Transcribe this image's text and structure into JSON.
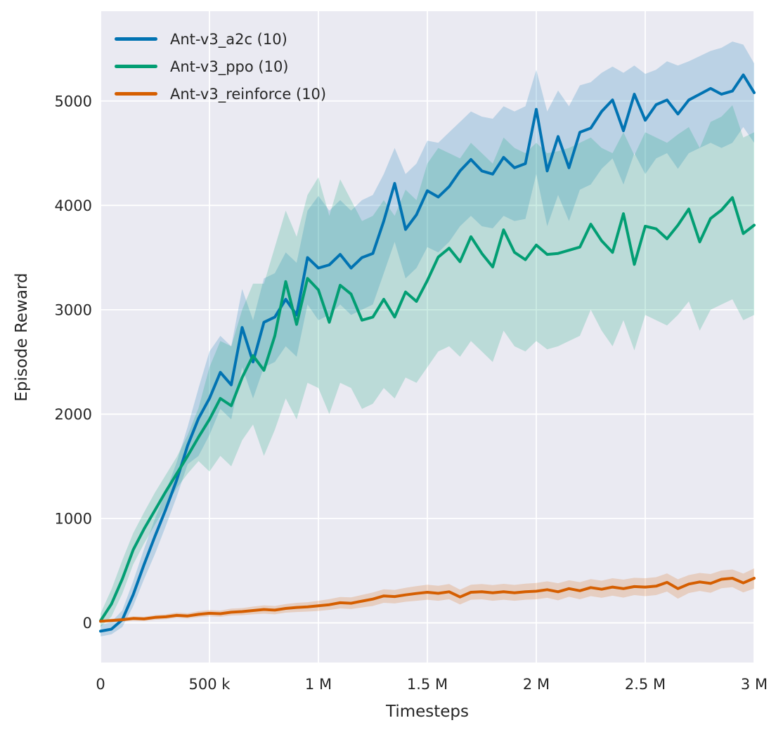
{
  "figure": {
    "background_color": "#ffffff",
    "axes_background_color": "#eaeaf2",
    "grid_color": "#ffffff",
    "text_color": "#262626"
  },
  "chart_data": {
    "type": "line",
    "title": "",
    "xlabel": "Timesteps",
    "ylabel": "Episode Reward",
    "xlim": [
      0,
      3000000
    ],
    "ylim": [
      -380,
      5860
    ],
    "grid": true,
    "legend_position": "upper left",
    "x_ticks": [
      {
        "value": 0,
        "label": "0"
      },
      {
        "value": 500000,
        "label": "500 k"
      },
      {
        "value": 1000000,
        "label": "1 M"
      },
      {
        "value": 1500000,
        "label": "1.5 M"
      },
      {
        "value": 2000000,
        "label": "2 M"
      },
      {
        "value": 2500000,
        "label": "2.5 M"
      },
      {
        "value": 3000000,
        "label": "3 M"
      }
    ],
    "y_ticks": [
      {
        "value": 0,
        "label": "0"
      },
      {
        "value": 1000,
        "label": "1000"
      },
      {
        "value": 2000,
        "label": "2000"
      },
      {
        "value": 3000,
        "label": "3000"
      },
      {
        "value": 4000,
        "label": "4000"
      },
      {
        "value": 5000,
        "label": "5000"
      }
    ],
    "x_sampling": {
      "start": 0,
      "step": 50000,
      "count": 61,
      "unit": "timesteps"
    },
    "ci_alpha": 0.2,
    "series": [
      {
        "name": "Ant-v3_a2c (10)",
        "color": "#0173b2",
        "mean": [
          -80,
          -60,
          30,
          270,
          560,
          830,
          1090,
          1370,
          1700,
          1960,
          2150,
          2400,
          2280,
          2830,
          2500,
          2880,
          2930,
          3100,
          2950,
          3500,
          3400,
          3430,
          3530,
          3400,
          3500,
          3540,
          3850,
          4210,
          3770,
          3910,
          4140,
          4080,
          4180,
          4330,
          4440,
          4330,
          4300,
          4460,
          4360,
          4400,
          4920,
          4330,
          4660,
          4360,
          4700,
          4740,
          4900,
          5010,
          4715,
          5065,
          4815,
          4965,
          5010,
          4875,
          5010,
          5065,
          5120,
          5065,
          5095,
          5250,
          5080
        ],
        "ci_lo": [
          -130,
          -110,
          -40,
          160,
          420,
          660,
          930,
          1210,
          1520,
          1600,
          1800,
          2050,
          1950,
          2450,
          2150,
          2450,
          2500,
          2650,
          2550,
          3050,
          2900,
          2950,
          3050,
          2950,
          3000,
          3050,
          3350,
          3650,
          3300,
          3400,
          3600,
          3550,
          3650,
          3800,
          3900,
          3800,
          3780,
          3900,
          3850,
          3870,
          4300,
          3800,
          4100,
          3850,
          4150,
          4200,
          4350,
          4450,
          4200,
          4500,
          4300,
          4450,
          4500,
          4350,
          4500,
          4550,
          4600,
          4550,
          4600,
          4750,
          4600
        ],
        "ci_hi": [
          -20,
          10,
          120,
          400,
          710,
          1000,
          1260,
          1540,
          1880,
          2250,
          2600,
          2750,
          2650,
          3200,
          2900,
          3300,
          3350,
          3550,
          3450,
          3950,
          4090,
          3950,
          4050,
          3950,
          4050,
          4100,
          4300,
          4550,
          4300,
          4400,
          4620,
          4600,
          4700,
          4800,
          4900,
          4850,
          4830,
          4950,
          4900,
          4950,
          5300,
          4900,
          5100,
          4950,
          5150,
          5180,
          5270,
          5330,
          5270,
          5340,
          5260,
          5300,
          5380,
          5340,
          5380,
          5430,
          5480,
          5510,
          5570,
          5540,
          5360
        ]
      },
      {
        "name": "Ant-v3_ppo (10)",
        "color": "#029e73",
        "mean": [
          20,
          180,
          420,
          700,
          900,
          1080,
          1260,
          1430,
          1600,
          1780,
          1950,
          2150,
          2080,
          2350,
          2560,
          2420,
          2750,
          3270,
          2860,
          3300,
          3190,
          2880,
          3235,
          3150,
          2900,
          2930,
          3100,
          2930,
          3170,
          3080,
          3280,
          3505,
          3590,
          3460,
          3700,
          3540,
          3410,
          3765,
          3550,
          3480,
          3620,
          3530,
          3540,
          3570,
          3600,
          3820,
          3660,
          3550,
          3920,
          3435,
          3800,
          3775,
          3680,
          3810,
          3965,
          3650,
          3875,
          3955,
          4075,
          3730,
          3810
        ],
        "ci_lo": [
          -40,
          60,
          280,
          560,
          760,
          940,
          1120,
          1290,
          1430,
          1550,
          1450,
          1600,
          1500,
          1750,
          1900,
          1600,
          1850,
          2150,
          1950,
          2300,
          2250,
          2000,
          2300,
          2250,
          2050,
          2100,
          2250,
          2150,
          2350,
          2300,
          2450,
          2600,
          2650,
          2550,
          2700,
          2600,
          2500,
          2800,
          2650,
          2600,
          2700,
          2620,
          2650,
          2700,
          2750,
          3000,
          2800,
          2650,
          2900,
          2610,
          2950,
          2900,
          2850,
          2950,
          3080,
          2800,
          3000,
          3050,
          3100,
          2900,
          2950
        ],
        "ci_hi": [
          90,
          320,
          600,
          860,
          1060,
          1250,
          1420,
          1590,
          1800,
          2060,
          2450,
          2700,
          2650,
          3000,
          3250,
          3250,
          3600,
          3950,
          3700,
          4100,
          4270,
          3900,
          4250,
          4050,
          3850,
          3900,
          4050,
          3900,
          4150,
          4050,
          4400,
          4550,
          4500,
          4450,
          4600,
          4500,
          4400,
          4650,
          4550,
          4500,
          4600,
          4500,
          4520,
          4550,
          4600,
          4650,
          4550,
          4500,
          4700,
          4480,
          4700,
          4650,
          4600,
          4680,
          4750,
          4550,
          4800,
          4850,
          4960,
          4650,
          4700
        ]
      },
      {
        "name": "Ant-v3_reinforce (10)",
        "color": "#d55e00",
        "mean": [
          15,
          22,
          30,
          42,
          38,
          52,
          58,
          72,
          66,
          82,
          92,
          88,
          102,
          108,
          118,
          128,
          122,
          138,
          148,
          153,
          163,
          174,
          193,
          188,
          208,
          228,
          258,
          252,
          268,
          282,
          293,
          283,
          298,
          248,
          293,
          298,
          288,
          298,
          288,
          298,
          303,
          318,
          298,
          328,
          308,
          338,
          322,
          343,
          328,
          348,
          343,
          352,
          388,
          328,
          372,
          392,
          378,
          418,
          428,
          383,
          428
        ],
        "ci_lo": [
          5,
          10,
          15,
          22,
          18,
          30,
          36,
          48,
          42,
          55,
          62,
          58,
          70,
          74,
          82,
          88,
          82,
          98,
          104,
          108,
          114,
          124,
          138,
          132,
          148,
          162,
          192,
          186,
          202,
          212,
          222,
          212,
          226,
          176,
          222,
          226,
          212,
          222,
          212,
          222,
          226,
          240,
          216,
          250,
          226,
          256,
          240,
          260,
          242,
          266,
          256,
          266,
          300,
          232,
          286,
          306,
          288,
          332,
          342,
          292,
          328
        ],
        "ci_hi": [
          30,
          38,
          50,
          62,
          58,
          75,
          82,
          98,
          92,
          112,
          122,
          118,
          136,
          142,
          156,
          168,
          162,
          180,
          192,
          198,
          212,
          228,
          248,
          244,
          268,
          292,
          322,
          316,
          336,
          352,
          366,
          356,
          372,
          318,
          366,
          372,
          362,
          374,
          364,
          376,
          382,
          398,
          380,
          408,
          390,
          420,
          404,
          428,
          414,
          432,
          428,
          438,
          474,
          418,
          458,
          478,
          468,
          502,
          512,
          472,
          522
        ]
      }
    ]
  }
}
